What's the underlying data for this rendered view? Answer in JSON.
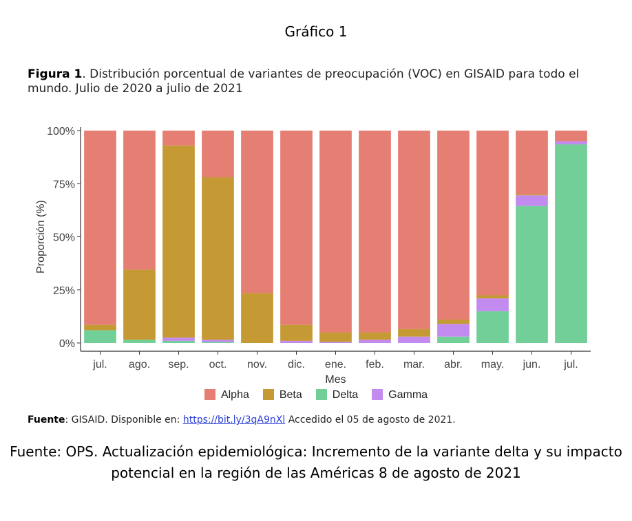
{
  "page": {
    "top_title": "Gráfico 1",
    "figure_label": "Figura 1",
    "figure_caption": ". Distribución porcentual de variantes de preocupación (VOC) en GISAID para todo el mundo. Julio de 2020 a julio de 2021",
    "source_label": "Fuente",
    "source_text_before": ": GISAID. Disponible en: ",
    "source_link": "https://bit.ly/3qA9nXl",
    "source_text_after": " Accedido el 05 de agosto de 2021.",
    "footer_line1": "Fuente: OPS.   Actualización epidemiológica: Incremento de la variante delta y su impacto",
    "footer_line2": "potencial en la región de las Américas 8 de agosto de 2021"
  },
  "chart_data": {
    "type": "bar",
    "stacked": true,
    "xlabel": "Mes",
    "ylabel": "Proporción (%)",
    "ylim": [
      0,
      100
    ],
    "y_ticks": [
      "0%",
      "25%",
      "50%",
      "75%",
      "100%"
    ],
    "categories": [
      "jul.",
      "ago.",
      "sep.",
      "oct.",
      "nov.",
      "dic.",
      "ene.",
      "feb.",
      "mar.",
      "abr.",
      "may.",
      "jun.",
      "jul."
    ],
    "legend_position": "bottom",
    "grid": false,
    "series": [
      {
        "name": "Delta",
        "color": "#72CF98",
        "values": [
          6,
          1.5,
          1,
          0.5,
          0,
          0,
          0,
          0,
          0,
          3,
          15,
          64.5,
          93.5
        ]
      },
      {
        "name": "Gamma",
        "color": "#C38AF0",
        "values": [
          0,
          0,
          1.5,
          1,
          0,
          1,
          0.5,
          1.5,
          3,
          6,
          6,
          5,
          1.5
        ]
      },
      {
        "name": "Beta",
        "color": "#C59A35",
        "values": [
          2.5,
          33,
          90.5,
          76.5,
          23.5,
          7.5,
          4.5,
          3.5,
          3.5,
          2,
          1.5,
          0.5,
          0
        ]
      },
      {
        "name": "Alpha",
        "color": "#E57F73",
        "values": [
          91.5,
          65.5,
          7,
          22,
          76.5,
          91.5,
          95,
          95,
          93.5,
          89,
          77.5,
          30,
          5
        ]
      }
    ],
    "legend_order": [
      "Alpha",
      "Beta",
      "Delta",
      "Gamma"
    ]
  }
}
